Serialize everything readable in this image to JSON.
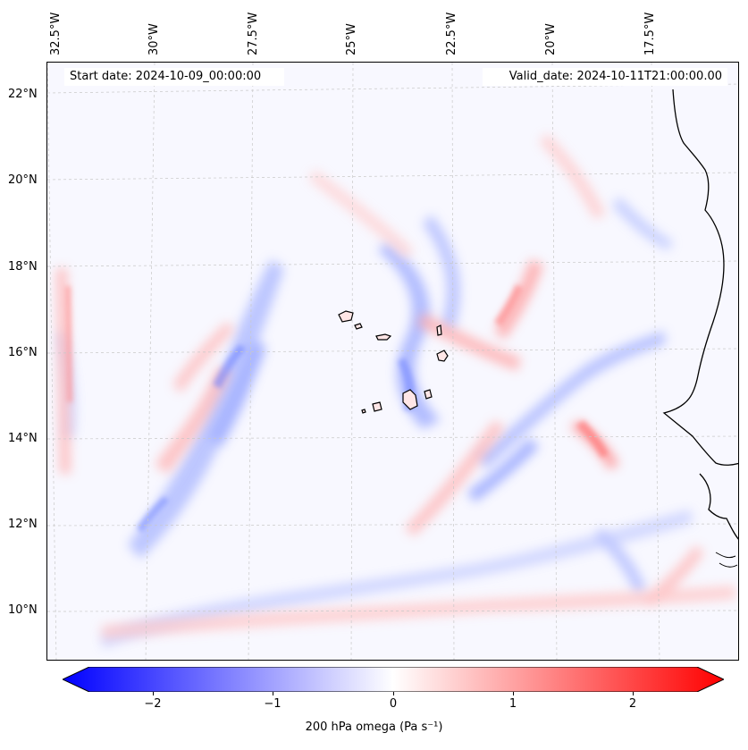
{
  "map": {
    "start_date": "Start date: 2024-10-09_00:00:00",
    "valid_date": "Valid_date: 2024-10-11T21:00:00.00",
    "lon_labels": [
      "32.5°W",
      "30°W",
      "27.5°W",
      "25°W",
      "22.5°W",
      "20°W",
      "17.5°W"
    ],
    "lat_labels": [
      "22°N",
      "20°N",
      "18°N",
      "16°N",
      "14°N",
      "12°N",
      "10°N"
    ],
    "field": "omega",
    "colormap": "bwr",
    "colors": {
      "negative": "#0000ff",
      "neutral": "#ffffff",
      "positive": "#ff0000",
      "coast": "#000000"
    }
  },
  "colorbar": {
    "label": "200 hPa omega (Pa s⁻¹)",
    "ticks": [
      "−2",
      "−1",
      "0",
      "1",
      "2"
    ],
    "range": [
      -2.6,
      2.6
    ],
    "extend": "both"
  }
}
